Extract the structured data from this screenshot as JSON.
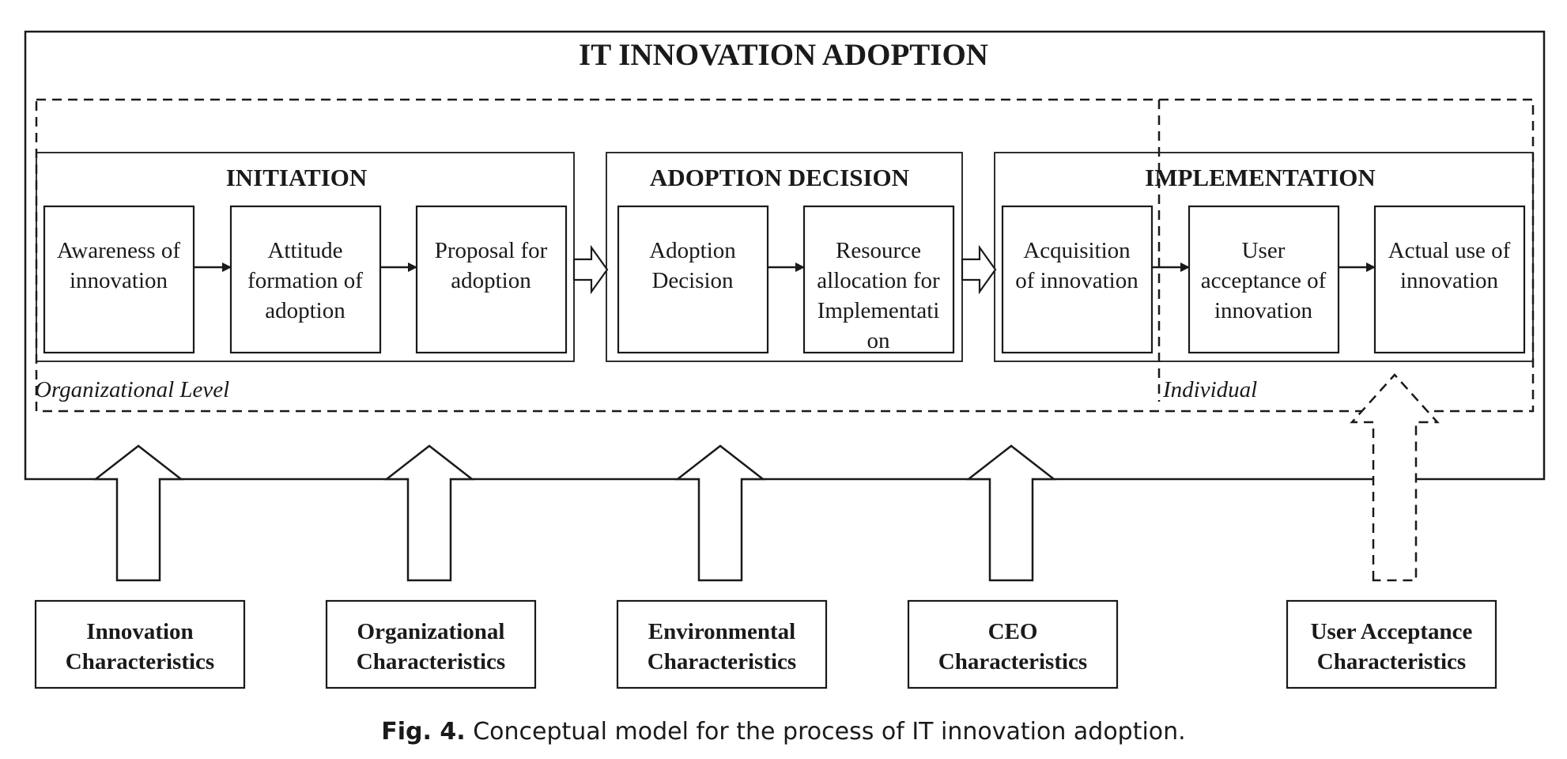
{
  "title": "IT INNOVATION ADOPTION",
  "levels": {
    "organizational": "Organizational Level",
    "individual": "Individual"
  },
  "stages": [
    {
      "name": "INITIATION",
      "steps": [
        [
          "Awareness of",
          "innovation"
        ],
        [
          "Attitude",
          "formation of",
          "adoption"
        ],
        [
          "Proposal for",
          "adoption"
        ]
      ]
    },
    {
      "name": "ADOPTION DECISION",
      "steps": [
        [
          "Adoption",
          "Decision"
        ],
        [
          "Resource",
          "allocation for",
          "Implementati",
          "on"
        ]
      ]
    },
    {
      "name": "IMPLEMENTATION",
      "steps": [
        [
          "Acquisition",
          "of innovation"
        ],
        [
          "User",
          "acceptance of",
          "innovation"
        ],
        [
          "Actual use of",
          "innovation"
        ]
      ]
    }
  ],
  "factors": [
    [
      "Innovation",
      "Characteristics"
    ],
    [
      "Organizational",
      "Characteristics"
    ],
    [
      "Environmental",
      "Characteristics"
    ],
    [
      "CEO",
      "Characteristics"
    ],
    [
      "User Acceptance",
      "Characteristics"
    ]
  ],
  "caption": {
    "label": "Fig. 4.",
    "text": "Conceptual model for the process of IT innovation adoption."
  }
}
